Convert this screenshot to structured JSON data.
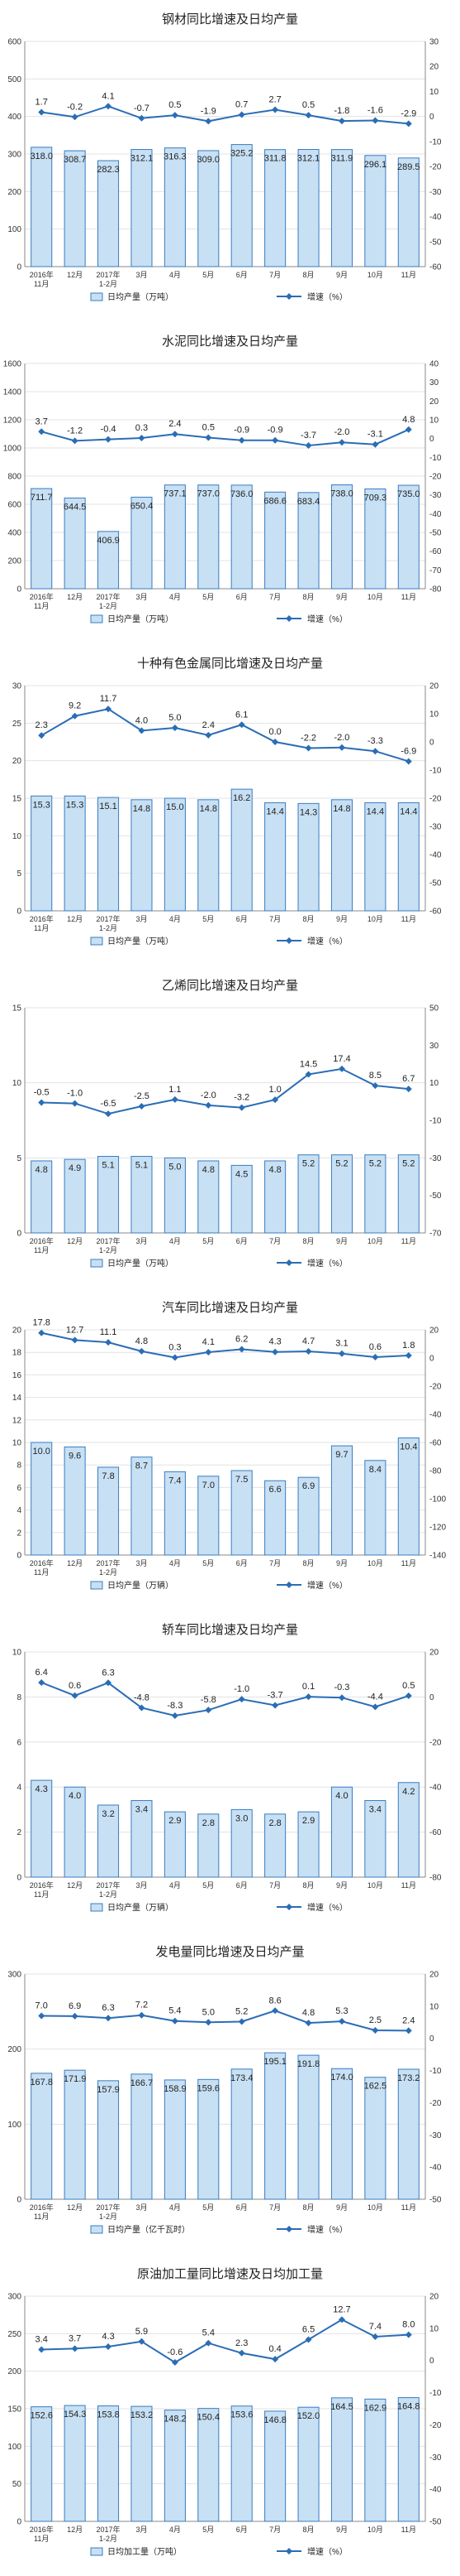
{
  "colors": {
    "bar_fill": "#c7e0f4",
    "bar_stroke": "#3a7cc0",
    "line": "#2a6db5",
    "grid": "#e3e3e3",
    "axis": "#888888"
  },
  "chart_data": [
    {
      "type": "bar",
      "title": "钢材同比增速及日均产量",
      "categories": [
        "2016年\n11月",
        "12月",
        "2017年\n1-2月",
        "3月",
        "4月",
        "5月",
        "6月",
        "7月",
        "8月",
        "9月",
        "10月",
        "11月"
      ],
      "series": [
        {
          "name": "日均产量（万吨）",
          "type": "bar",
          "axis": "left",
          "values": [
            318.0,
            308.7,
            282.3,
            312.1,
            316.3,
            309.0,
            325.2,
            311.8,
            312.1,
            311.9,
            296.1,
            289.5
          ]
        },
        {
          "name": "增速（%）",
          "type": "line",
          "axis": "right",
          "values": [
            1.7,
            -0.2,
            4.1,
            -0.7,
            0.5,
            -1.9,
            0.7,
            2.7,
            0.5,
            -1.8,
            -1.6,
            -2.9
          ]
        }
      ],
      "ylim": [
        0,
        600
      ],
      "yticks": [
        0,
        100,
        200,
        300,
        400,
        500,
        600
      ],
      "y2lim": [
        -60,
        30
      ],
      "y2ticks": [
        -60,
        -50,
        -40,
        -30,
        -20,
        -10,
        0,
        10,
        20,
        30
      ],
      "grid": true,
      "legend": "bottom"
    },
    {
      "type": "bar",
      "title": "水泥同比增速及日均产量",
      "categories": [
        "2016年\n11月",
        "12月",
        "2017年\n1-2月",
        "3月",
        "4月",
        "5月",
        "6月",
        "7月",
        "8月",
        "9月",
        "10月",
        "11月"
      ],
      "series": [
        {
          "name": "日均产量（万吨）",
          "type": "bar",
          "axis": "left",
          "values": [
            711.7,
            644.5,
            406.9,
            650.4,
            737.1,
            737.0,
            736.0,
            686.6,
            683.4,
            738.0,
            709.3,
            735.0
          ]
        },
        {
          "name": "增速（%）",
          "type": "line",
          "axis": "right",
          "values": [
            3.7,
            -1.2,
            -0.4,
            0.3,
            2.4,
            0.5,
            -0.9,
            -0.9,
            -3.7,
            -2.0,
            -3.1,
            4.8
          ]
        }
      ],
      "ylim": [
        0,
        1600
      ],
      "yticks": [
        0,
        200,
        400,
        600,
        800,
        1000,
        1200,
        1400,
        1600
      ],
      "y2lim": [
        -80,
        40
      ],
      "y2ticks": [
        -80,
        -70,
        -60,
        -50,
        -40,
        -30,
        -20,
        -10,
        0,
        10,
        20,
        30,
        40
      ],
      "grid": true,
      "legend": "bottom"
    },
    {
      "type": "bar",
      "title": "十种有色金属同比增速及日均产量",
      "categories": [
        "2016年\n11月",
        "12月",
        "2017年\n1-2月",
        "3月",
        "4月",
        "5月",
        "6月",
        "7月",
        "8月",
        "9月",
        "10月",
        "11月"
      ],
      "series": [
        {
          "name": "日均产量（万吨）",
          "type": "bar",
          "axis": "left",
          "values": [
            15.3,
            15.3,
            15.1,
            14.8,
            15.0,
            14.8,
            16.2,
            14.4,
            14.3,
            14.8,
            14.4,
            14.4
          ]
        },
        {
          "name": "增速（%）",
          "type": "line",
          "axis": "right",
          "values": [
            2.3,
            9.2,
            11.7,
            4.0,
            5.0,
            2.4,
            6.1,
            0.0,
            -2.2,
            -2.0,
            -3.3,
            -6.9
          ]
        }
      ],
      "ylim": [
        0,
        30
      ],
      "yticks": [
        0,
        5,
        10,
        15,
        20,
        25,
        30
      ],
      "y2lim": [
        -60,
        20
      ],
      "y2ticks": [
        -60,
        -50,
        -40,
        -30,
        -20,
        -10,
        0,
        10,
        20
      ],
      "grid": true,
      "legend": "bottom"
    },
    {
      "type": "bar",
      "title": "乙烯同比增速及日均产量",
      "categories": [
        "2016年\n11月",
        "12月",
        "2017年\n1-2月",
        "3月",
        "4月",
        "5月",
        "6月",
        "7月",
        "8月",
        "9月",
        "10月",
        "11月"
      ],
      "series": [
        {
          "name": "日均产量（万吨）",
          "type": "bar",
          "axis": "left",
          "values": [
            4.8,
            4.9,
            5.1,
            5.1,
            5.0,
            4.8,
            4.5,
            4.8,
            5.2,
            5.2,
            5.2,
            5.2
          ]
        },
        {
          "name": "增速（%）",
          "type": "line",
          "axis": "right",
          "values": [
            -0.5,
            -1.0,
            -6.5,
            -2.5,
            1.1,
            -2.0,
            -3.2,
            1.0,
            14.5,
            17.4,
            8.5,
            6.7
          ]
        }
      ],
      "ylim": [
        0,
        15
      ],
      "yticks": [
        0,
        5,
        10,
        15
      ],
      "y2lim": [
        -70,
        50
      ],
      "y2ticks": [
        -70,
        -50,
        -30,
        -10,
        10,
        30,
        50
      ],
      "grid": true,
      "legend": "bottom"
    },
    {
      "type": "bar",
      "title": "汽车同比增速及日均产量",
      "categories": [
        "2016年\n11月",
        "12月",
        "2017年\n1-2月",
        "3月",
        "4月",
        "5月",
        "6月",
        "7月",
        "8月",
        "9月",
        "10月",
        "11月"
      ],
      "series": [
        {
          "name": "日均产量（万辆）",
          "type": "bar",
          "axis": "left",
          "values": [
            10.0,
            9.6,
            7.8,
            8.7,
            7.4,
            7.0,
            7.5,
            6.6,
            6.9,
            9.7,
            8.4,
            10.4
          ]
        },
        {
          "name": "增速（%）",
          "type": "line",
          "axis": "right",
          "values": [
            17.8,
            12.7,
            11.1,
            4.8,
            0.3,
            4.1,
            6.2,
            4.3,
            4.7,
            3.1,
            0.6,
            1.8
          ]
        }
      ],
      "ylim": [
        0,
        20
      ],
      "yticks": [
        0,
        2,
        4,
        6,
        8,
        10,
        12,
        14,
        16,
        18,
        20
      ],
      "y2lim": [
        -140,
        20
      ],
      "y2ticks": [
        -140,
        -120,
        -100,
        -80,
        -60,
        -40,
        -20,
        0,
        20
      ],
      "grid": true,
      "legend": "bottom"
    },
    {
      "type": "bar",
      "title": "轿车同比增速及日均产量",
      "categories": [
        "2016年\n11月",
        "12月",
        "2017年\n1-2月",
        "3月",
        "4月",
        "5月",
        "6月",
        "7月",
        "8月",
        "9月",
        "10月",
        "11月"
      ],
      "series": [
        {
          "name": "日均产量（万辆）",
          "type": "bar",
          "axis": "left",
          "values": [
            4.3,
            4.0,
            3.2,
            3.4,
            2.9,
            2.8,
            3.0,
            2.8,
            2.9,
            4.0,
            3.4,
            4.2
          ]
        },
        {
          "name": "增速（%）",
          "type": "line",
          "axis": "right",
          "values": [
            6.4,
            0.6,
            6.3,
            -4.8,
            -8.3,
            -5.8,
            -1.0,
            -3.7,
            0.1,
            -0.3,
            -4.4,
            0.5
          ]
        }
      ],
      "ylim": [
        0,
        10
      ],
      "yticks": [
        0,
        2,
        4,
        6,
        8,
        10
      ],
      "y2lim": [
        -80,
        20
      ],
      "y2ticks": [
        -80,
        -60,
        -40,
        -20,
        0,
        20
      ],
      "grid": true,
      "legend": "bottom"
    },
    {
      "type": "bar",
      "title": "发电量同比增速及日均产量",
      "categories": [
        "2016年\n11月",
        "12月",
        "2017年\n1-2月",
        "3月",
        "4月",
        "5月",
        "6月",
        "7月",
        "8月",
        "9月",
        "10月",
        "11月"
      ],
      "series": [
        {
          "name": "日均产量（亿千瓦时）",
          "type": "bar",
          "axis": "left",
          "values": [
            167.8,
            171.9,
            157.9,
            166.7,
            158.9,
            159.6,
            173.4,
            195.1,
            191.8,
            174.0,
            162.5,
            173.2
          ]
        },
        {
          "name": "增速（%）",
          "type": "line",
          "axis": "right",
          "values": [
            7.0,
            6.9,
            6.3,
            7.2,
            5.4,
            5.0,
            5.2,
            8.6,
            4.8,
            5.3,
            2.5,
            2.4
          ]
        }
      ],
      "ylim": [
        0,
        300
      ],
      "yticks": [
        0,
        100,
        200,
        300
      ],
      "y2lim": [
        -50,
        20
      ],
      "y2ticks": [
        -50,
        -40,
        -30,
        -20,
        -10,
        0,
        10,
        20
      ],
      "grid": true,
      "legend": "bottom"
    },
    {
      "type": "bar",
      "title": "原油加工量同比增速及日均加工量",
      "categories": [
        "2016年\n11月",
        "12月",
        "2017年\n1-2月",
        "3月",
        "4月",
        "5月",
        "6月",
        "7月",
        "8月",
        "9月",
        "10月",
        "11月"
      ],
      "series": [
        {
          "name": "日均加工量（万吨）",
          "type": "bar",
          "axis": "left",
          "values": [
            152.6,
            154.3,
            153.8,
            153.2,
            148.2,
            150.4,
            153.6,
            146.8,
            152.0,
            164.5,
            162.9,
            164.8
          ]
        },
        {
          "name": "增速（%）",
          "type": "line",
          "axis": "right",
          "values": [
            3.4,
            3.7,
            4.3,
            5.9,
            -0.6,
            5.4,
            2.3,
            0.4,
            6.5,
            12.7,
            7.4,
            8.0
          ]
        }
      ],
      "ylim": [
        0,
        300
      ],
      "yticks": [
        0,
        50,
        100,
        150,
        200,
        250,
        300
      ],
      "y2lim": [
        -50,
        20
      ],
      "y2ticks": [
        -50,
        -40,
        -30,
        -20,
        -10,
        0,
        10,
        20
      ],
      "grid": true,
      "legend": "bottom"
    }
  ]
}
